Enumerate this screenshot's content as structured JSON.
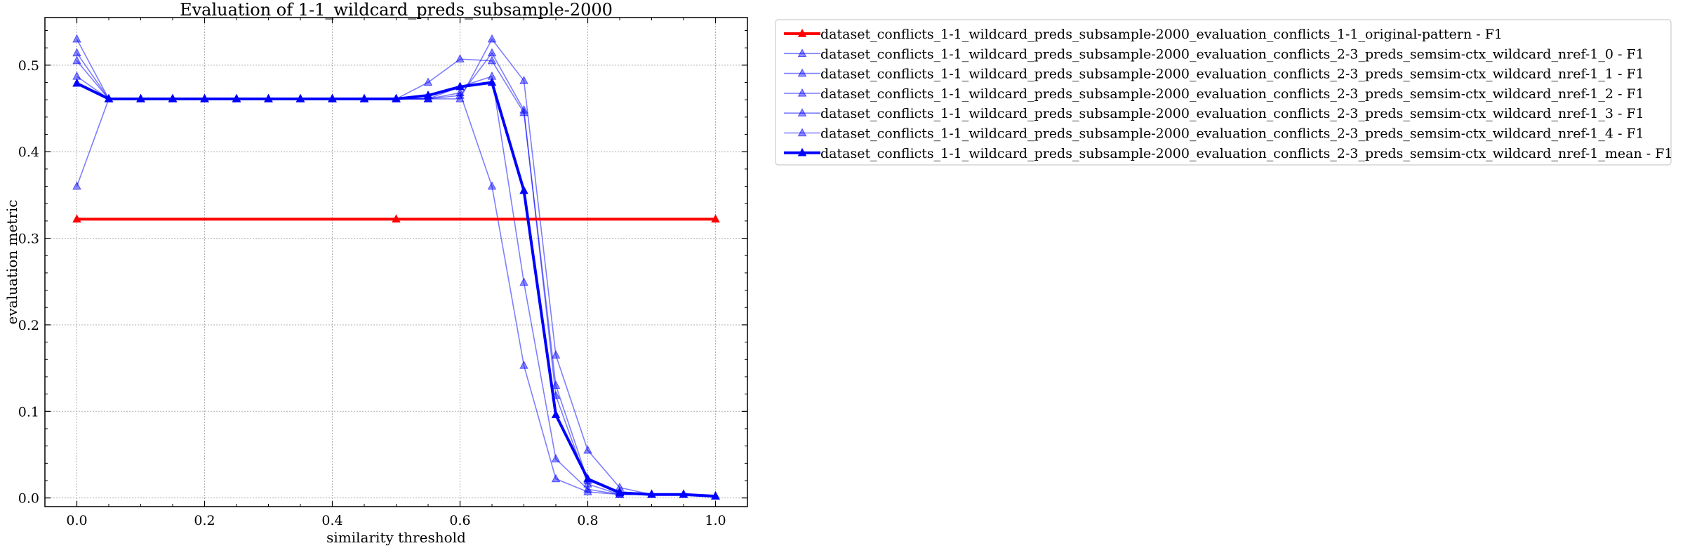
{
  "chart_data": {
    "type": "line",
    "title": "Evaluation of 1-1_wildcard_preds_subsample-2000",
    "xlabel": "similarity threshold",
    "ylabel": "evaluation metric",
    "xlim": [
      -0.05,
      1.05
    ],
    "ylim": [
      -0.01,
      0.555
    ],
    "xticks": [
      0.0,
      0.2,
      0.4,
      0.6,
      0.8,
      1.0
    ],
    "xtick_labels": [
      "0.0",
      "0.2",
      "0.4",
      "0.6",
      "0.8",
      "1.0"
    ],
    "yticks": [
      0.0,
      0.1,
      0.2,
      0.3,
      0.4,
      0.5
    ],
    "ytick_labels": [
      "0.0",
      "0.1",
      "0.2",
      "0.3",
      "0.4",
      "0.5"
    ],
    "grid": true,
    "legend_position": "outside-upper-right",
    "series": [
      {
        "name": "dataset_conflicts_1-1_wildcard_preds_subsample-2000_evaluation_conflicts_1-1_original-pattern - F1",
        "color": "#ff0000",
        "style": "bold",
        "x": [
          0.0,
          0.5,
          1.0
        ],
        "y": [
          0.322,
          0.322,
          0.322
        ]
      },
      {
        "name": "dataset_conflicts_1-1_wildcard_preds_subsample-2000_evaluation_conflicts_2-3_preds_semsim-ctx_wildcard_nref-1_0 - F1",
        "color": "#0000ff",
        "style": "light",
        "x": [
          0.0,
          0.05,
          0.1,
          0.15,
          0.2,
          0.25,
          0.3,
          0.35,
          0.4,
          0.45,
          0.5,
          0.55,
          0.6,
          0.65,
          0.7,
          0.75,
          0.8,
          0.85,
          0.9,
          0.95,
          1.0
        ],
        "y": [
          0.53,
          0.461,
          0.461,
          0.461,
          0.461,
          0.461,
          0.461,
          0.461,
          0.461,
          0.461,
          0.461,
          0.461,
          0.461,
          0.53,
          0.482,
          0.165,
          0.055,
          0.012,
          0.004,
          0.004,
          0.002
        ]
      },
      {
        "name": "dataset_conflicts_1-1_wildcard_preds_subsample-2000_evaluation_conflicts_2-3_preds_semsim-ctx_wildcard_nref-1_1 - F1",
        "color": "#0000ff",
        "style": "light",
        "x": [
          0.0,
          0.05,
          0.1,
          0.15,
          0.2,
          0.25,
          0.3,
          0.35,
          0.4,
          0.45,
          0.5,
          0.55,
          0.6,
          0.65,
          0.7,
          0.75,
          0.8,
          0.85,
          0.9,
          0.95,
          1.0
        ],
        "y": [
          0.514,
          0.461,
          0.461,
          0.461,
          0.461,
          0.461,
          0.461,
          0.461,
          0.461,
          0.461,
          0.461,
          0.461,
          0.468,
          0.36,
          0.153,
          0.022,
          0.007,
          0.004,
          0.004,
          0.004,
          0.002
        ]
      },
      {
        "name": "dataset_conflicts_1-1_wildcard_preds_subsample-2000_evaluation_conflicts_2-3_preds_semsim-ctx_wildcard_nref-1_2 - F1",
        "color": "#0000ff",
        "style": "light",
        "x": [
          0.0,
          0.05,
          0.1,
          0.15,
          0.2,
          0.25,
          0.3,
          0.35,
          0.4,
          0.45,
          0.5,
          0.55,
          0.6,
          0.65,
          0.7,
          0.75,
          0.8,
          0.85,
          0.9,
          0.95,
          1.0
        ],
        "y": [
          0.505,
          0.461,
          0.461,
          0.461,
          0.461,
          0.461,
          0.461,
          0.461,
          0.461,
          0.461,
          0.461,
          0.48,
          0.507,
          0.505,
          0.445,
          0.13,
          0.02,
          0.007,
          0.004,
          0.004,
          0.002
        ]
      },
      {
        "name": "dataset_conflicts_1-1_wildcard_preds_subsample-2000_evaluation_conflicts_2-3_preds_semsim-ctx_wildcard_nref-1_3 - F1",
        "color": "#0000ff",
        "style": "light",
        "x": [
          0.0,
          0.05,
          0.1,
          0.15,
          0.2,
          0.25,
          0.3,
          0.35,
          0.4,
          0.45,
          0.5,
          0.55,
          0.6,
          0.65,
          0.7,
          0.75,
          0.8,
          0.85,
          0.9,
          0.95,
          1.0
        ],
        "y": [
          0.487,
          0.461,
          0.461,
          0.461,
          0.461,
          0.461,
          0.461,
          0.461,
          0.461,
          0.461,
          0.461,
          0.461,
          0.475,
          0.487,
          0.249,
          0.045,
          0.01,
          0.004,
          0.004,
          0.004,
          0.002
        ]
      },
      {
        "name": "dataset_conflicts_1-1_wildcard_preds_subsample-2000_evaluation_conflicts_2-3_preds_semsim-ctx_wildcard_nref-1_4 - F1",
        "color": "#0000ff",
        "style": "light",
        "x": [
          0.0,
          0.05,
          0.1,
          0.15,
          0.2,
          0.25,
          0.3,
          0.35,
          0.4,
          0.45,
          0.5,
          0.55,
          0.6,
          0.65,
          0.7,
          0.75,
          0.8,
          0.85,
          0.9,
          0.95,
          1.0
        ],
        "y": [
          0.36,
          0.461,
          0.461,
          0.461,
          0.461,
          0.461,
          0.461,
          0.461,
          0.461,
          0.461,
          0.461,
          0.461,
          0.465,
          0.514,
          0.448,
          0.118,
          0.016,
          0.004,
          0.004,
          0.004,
          0.002
        ]
      },
      {
        "name": "dataset_conflicts_1-1_wildcard_preds_subsample-2000_evaluation_conflicts_2-3_preds_semsim-ctx_wildcard_nref-1_mean - F1",
        "color": "#0000ff",
        "style": "bold",
        "x": [
          0.0,
          0.05,
          0.1,
          0.15,
          0.2,
          0.25,
          0.3,
          0.35,
          0.4,
          0.45,
          0.5,
          0.55,
          0.6,
          0.65,
          0.7,
          0.75,
          0.8,
          0.85,
          0.9,
          0.95,
          1.0
        ],
        "y": [
          0.479,
          0.461,
          0.461,
          0.461,
          0.461,
          0.461,
          0.461,
          0.461,
          0.461,
          0.461,
          0.461,
          0.465,
          0.475,
          0.48,
          0.355,
          0.096,
          0.022,
          0.006,
          0.004,
          0.004,
          0.002
        ]
      }
    ]
  }
}
